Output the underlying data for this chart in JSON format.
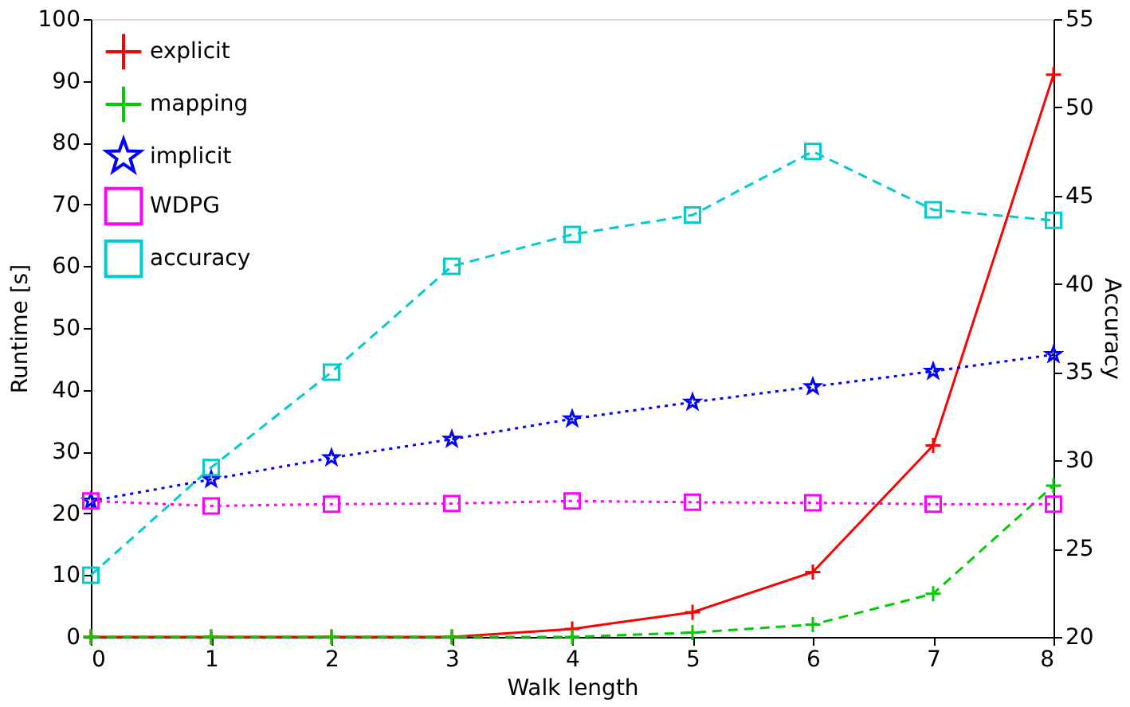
{
  "chart_data": {
    "type": "line",
    "xlabel": "Walk length",
    "ylabel": "Runtime [s]",
    "y2label": "Accuracy",
    "x": [
      0,
      1,
      2,
      3,
      4,
      5,
      6,
      7,
      8
    ],
    "xlim": [
      0,
      8
    ],
    "xticks": [
      0,
      1,
      2,
      3,
      4,
      5,
      6,
      7,
      8
    ],
    "ylim": [
      0,
      100
    ],
    "yticks": [
      0,
      10,
      20,
      30,
      40,
      50,
      60,
      70,
      80,
      90,
      100
    ],
    "y2lim": [
      20,
      55
    ],
    "y2ticks": [
      20,
      25,
      30,
      35,
      40,
      45,
      50,
      55
    ],
    "grid": false,
    "legend": "top left",
    "series": [
      {
        "name": "explicit",
        "color": "#ff0000",
        "marker": "cross",
        "line_style": "solid",
        "values": [
          0,
          0,
          0,
          0,
          1.3,
          4,
          10.5,
          31,
          91
        ]
      },
      {
        "name": "mapping",
        "color": "#00cc00",
        "marker": "cross",
        "line_style": "dashed",
        "values": [
          0,
          0,
          0,
          0,
          0,
          0.7,
          2,
          7,
          24.5
        ]
      },
      {
        "name": "implicit",
        "color": "#0000ff",
        "marker": "star",
        "line_style": "dotted",
        "values": [
          22,
          25.5,
          29,
          32,
          35.3,
          38,
          40.5,
          43,
          45.7
        ]
      },
      {
        "name": "WDPG",
        "color": "#ff00ff",
        "marker": "square",
        "line_style": "dotted",
        "values": [
          22,
          21.2,
          21.5,
          21.6,
          22,
          21.8,
          21.7,
          21.5,
          21.5
        ]
      },
      {
        "name": "accuracy",
        "color": "#00cccc",
        "marker": "square",
        "line_style": "dashed",
        "axis": "y2",
        "values": [
          23.5,
          29.6,
          35,
          41,
          42.8,
          43.9,
          47.5,
          44.2,
          43.6
        ]
      }
    ]
  }
}
